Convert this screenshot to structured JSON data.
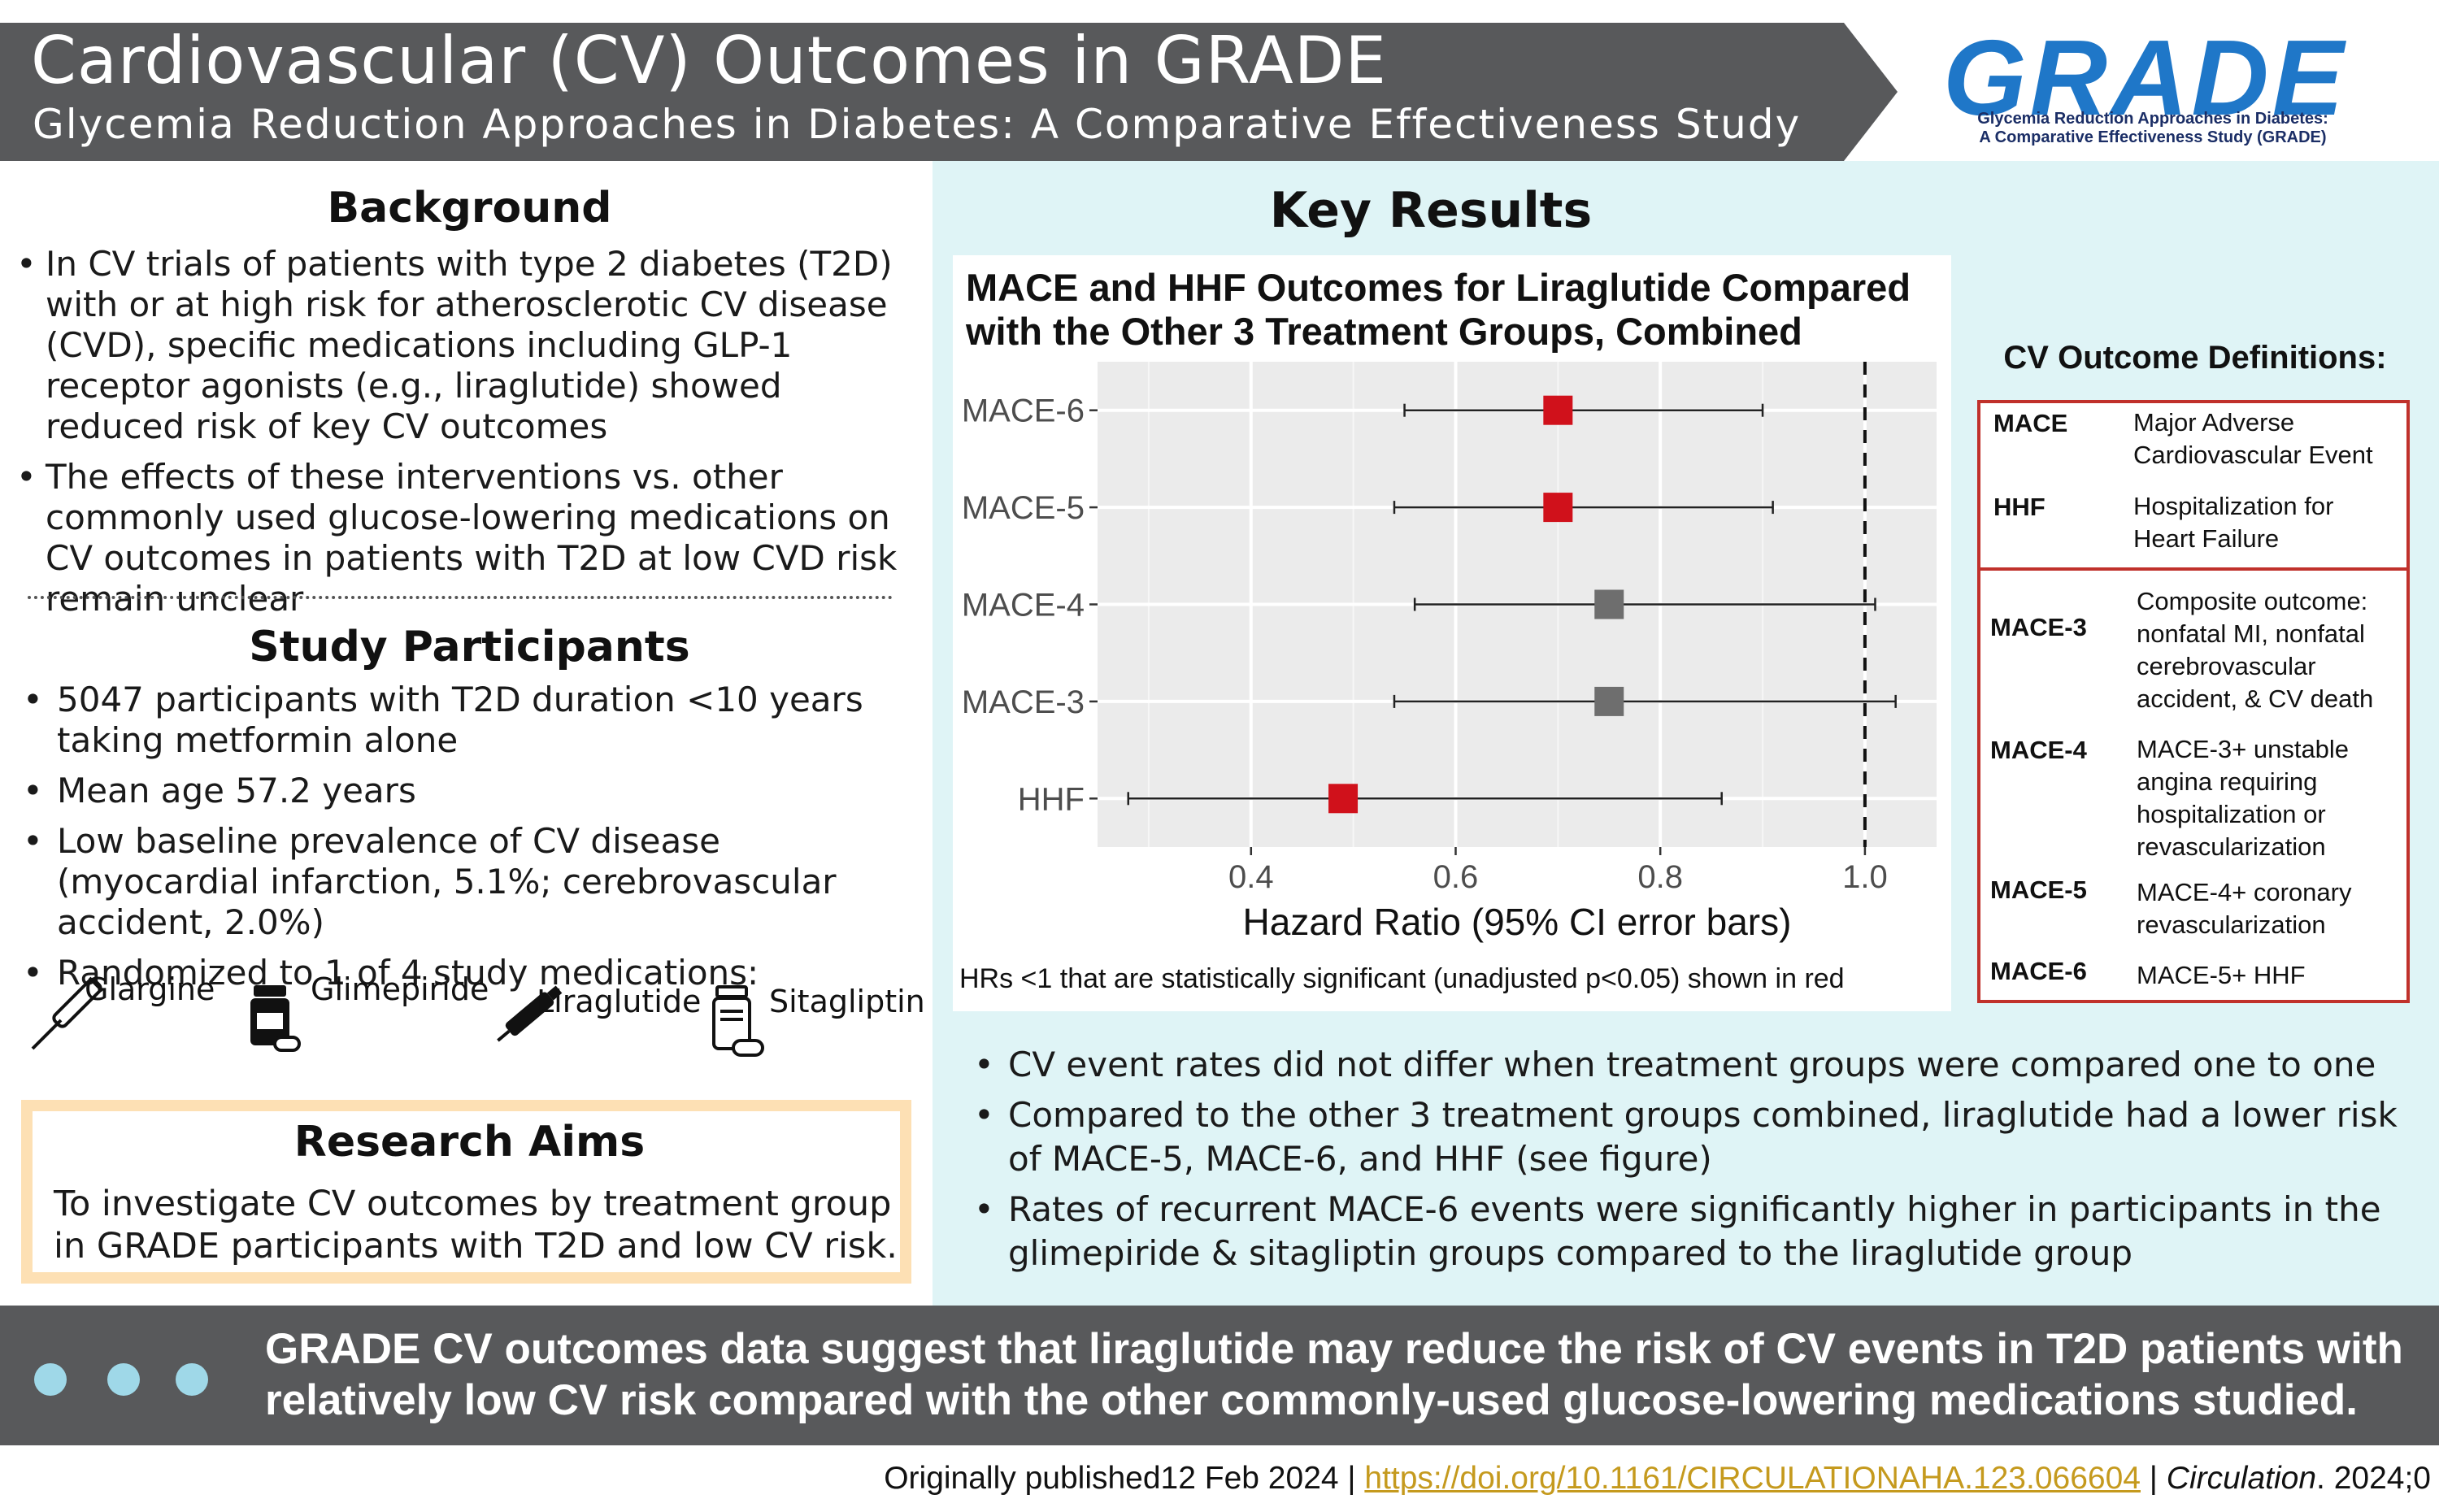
{
  "header": {
    "title": "Cardiovascular (CV) Outcomes in GRADE",
    "subtitle": "Glycemia Reduction Approaches in Diabetes: A Comparative Effectiveness Study"
  },
  "logo": {
    "text": "GRADE",
    "sub1": "Glycemia Reduction Approaches in Diabetes:",
    "sub2": "A Comparative Effectiveness Study (GRADE)"
  },
  "background": {
    "heading": "Background",
    "bullets": [
      "In CV trials of patients with type 2 diabetes (T2D) with or at high risk for atherosclerotic CV disease (CVD), specific medications including GLP-1 receptor agonists (e.g., liraglutide) showed reduced risk of key CV outcomes",
      "The effects of these interventions vs. other commonly used glucose-lowering medications on CV outcomes in patients with T2D at low CVD risk remain unclear"
    ]
  },
  "participants": {
    "heading": "Study Participants",
    "bullets": [
      "5047 participants with T2D duration <10 years taking metformin alone",
      "Mean age 57.2 years",
      "Low baseline prevalence of CV disease (myocardial infarction, 5.1%; cerebrovascular accident, 2.0%)",
      "Randomized to 1 of 4 study medications:"
    ],
    "medications": [
      "Glargine",
      "Glimepiride",
      "Liraglutide",
      "Sitagliptin"
    ]
  },
  "aims": {
    "heading": "Research Aims",
    "text": "To investigate CV outcomes by treatment group in GRADE participants with T2D and low CV risk."
  },
  "key_results": {
    "heading": "Key Results",
    "bullets": [
      "CV event rates did not differ when treatment groups were compared one to one",
      "Compared to the other 3 treatment groups combined, liraglutide had a lower risk of MACE-5, MACE-6, and HHF (see figure)",
      "Rates of recurrent MACE-6 events were significantly higher in participants in the glimepiride & sitagliptin groups compared to the liraglutide group"
    ]
  },
  "chart_data": {
    "type": "forest",
    "title_line1": "MACE and HHF Outcomes for Liraglutide Compared",
    "title_line2": "with the Other 3 Treatment Groups, Combined",
    "xlabel": "Hazard Ratio (95% CI error bars)",
    "xlim": [
      0.25,
      1.07
    ],
    "xticks": [
      0.4,
      0.6,
      0.8,
      1.0
    ],
    "xtick_labels": [
      "0.4",
      "0.6",
      "0.8",
      "1.0"
    ],
    "reference_line": 1.0,
    "grid": true,
    "note": "HRs <1 that are statistically significant (unadjusted p<0.05) shown in red",
    "rows": [
      {
        "label": "MACE-6",
        "hr": 0.7,
        "lower": 0.55,
        "upper": 0.9,
        "significant": true
      },
      {
        "label": "MACE-5",
        "hr": 0.7,
        "lower": 0.54,
        "upper": 0.91,
        "significant": true
      },
      {
        "label": "MACE-4",
        "hr": 0.75,
        "lower": 0.56,
        "upper": 1.01,
        "significant": false
      },
      {
        "label": "MACE-3",
        "hr": 0.75,
        "lower": 0.54,
        "upper": 1.03,
        "significant": false
      },
      {
        "label": "HHF",
        "hr": 0.49,
        "lower": 0.28,
        "upper": 0.86,
        "significant": true
      }
    ],
    "colors": {
      "significant": "#d0111b",
      "nonsignificant": "#6e6e6e",
      "panel": "#ebebeb"
    }
  },
  "definitions": {
    "heading": "CV Outcome Definitions:",
    "primary": [
      {
        "key": "MACE",
        "value": "Major Adverse Cardiovascular Event"
      },
      {
        "key": "HHF",
        "value": "Hospitalization for Heart Failure"
      }
    ],
    "composite": [
      {
        "key": "MACE-3",
        "value": "Composite outcome: nonfatal MI, nonfatal cerebrovascular accident, & CV death"
      },
      {
        "key": "MACE-4",
        "value": "MACE-3+ unstable angina requiring hospitalization or revascularization"
      },
      {
        "key": "MACE-5",
        "value": "MACE-4+ coronary revascularization"
      },
      {
        "key": "MACE-6",
        "value": "MACE-5+ HHF"
      }
    ]
  },
  "conclusion": "GRADE CV outcomes data suggest that liraglutide may reduce the risk of CV events in T2D patients with relatively low CV risk compared with the other commonly-used glucose-lowering medications studied.",
  "footer": {
    "published": "Originally published12 Feb 2024 | ",
    "doi": "https://doi.org/10.1161/CIRCULATIONAHA.123.066604",
    "sep": " | ",
    "journal": "Circulation",
    "citation": ". 2024;0"
  }
}
